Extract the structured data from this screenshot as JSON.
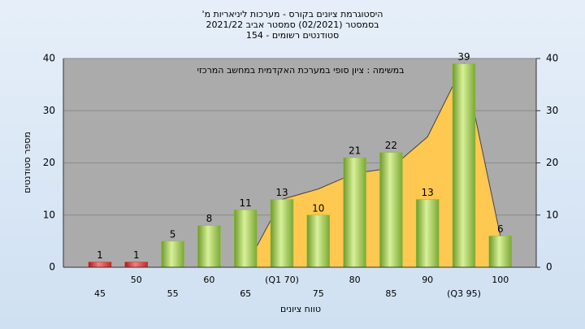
{
  "chart_data": {
    "type": "bar",
    "title_lines": [
      "היסטוגרמת ציונים בקורס - מערכות ליניאריות מ'",
      "בסמסטר  (02/2021)  סמסטר אביב 2021/22",
      "סטודנטים רשומים - 154"
    ],
    "annotation": "במשימה : ציון סופי במערכת האקדמית במחשב המרכזי",
    "x_label": "טווח ציונים",
    "y_label": "מספר סטודנטים",
    "categories": [
      "45",
      "50",
      "55",
      "60",
      "65",
      "(Q1 70)",
      "75",
      "80",
      "85",
      "90",
      "(Q3 95)",
      "100"
    ],
    "values": [
      1,
      1,
      5,
      8,
      11,
      13,
      10,
      21,
      22,
      13,
      39,
      6
    ],
    "colors": [
      "#d03030",
      "#d03030",
      "#8cc03c",
      "#8cc03c",
      "#8cc03c",
      "#8cc03c",
      "#8cc03c",
      "#8cc03c",
      "#8cc03c",
      "#8cc03c",
      "#8cc03c",
      "#8cc03c"
    ],
    "trend": {
      "color": "#ffc850",
      "values": [
        null,
        null,
        null,
        null,
        0,
        13,
        15,
        18,
        19,
        25,
        39,
        6
      ]
    },
    "ylim": [
      0,
      40
    ],
    "yticks": [
      0,
      10,
      20,
      30,
      40
    ],
    "y2lim": [
      0,
      40
    ],
    "y2ticks": [
      0,
      10,
      20,
      30,
      40
    ],
    "grid": true
  }
}
